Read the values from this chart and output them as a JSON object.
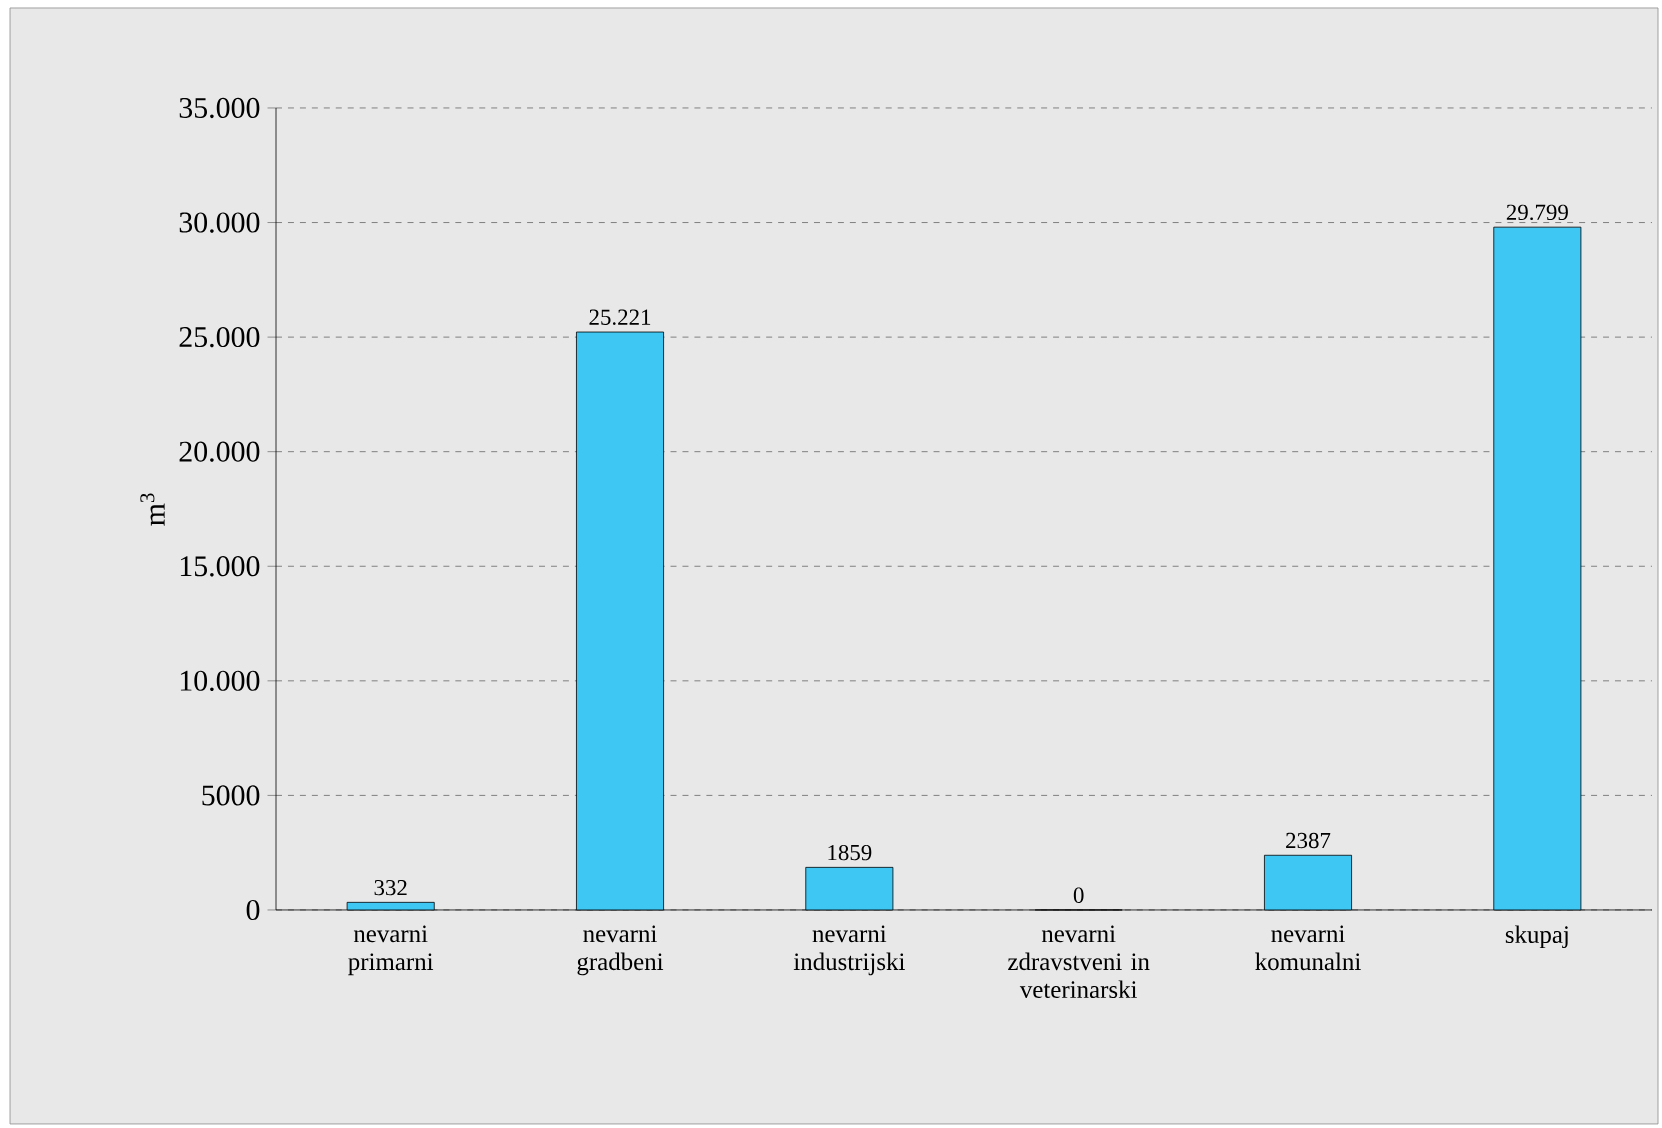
{
  "chart_data": {
    "type": "bar",
    "ylabel": "m$^{3}$",
    "categories": [
      "nevarni primarni",
      "nevarni gradbeni",
      "nevarni industrijski",
      "nevarni zdravstveni in veterinarski",
      "nevarni komunalni",
      "skupaj"
    ],
    "values": [
      332,
      25221,
      1859,
      0,
      2387,
      29799
    ],
    "value_labels": [
      "332",
      "25.221",
      "1859",
      "0",
      "2387",
      "29.799"
    ],
    "color": "#3fc7f4",
    "ylim": [
      0,
      35000
    ],
    "yticks": [
      0,
      5000,
      {
        "value": 10000,
        "label": "10.000"
      },
      {
        "value": 15000,
        "label": "15.000"
      },
      {
        "value": 20000,
        "label": "20.000"
      },
      {
        "value": 25000,
        "label": "25.000"
      },
      {
        "value": 30000,
        "label": "30.000"
      },
      {
        "value": 35000,
        "label": "35.000"
      }
    ],
    "grid": "y"
  }
}
